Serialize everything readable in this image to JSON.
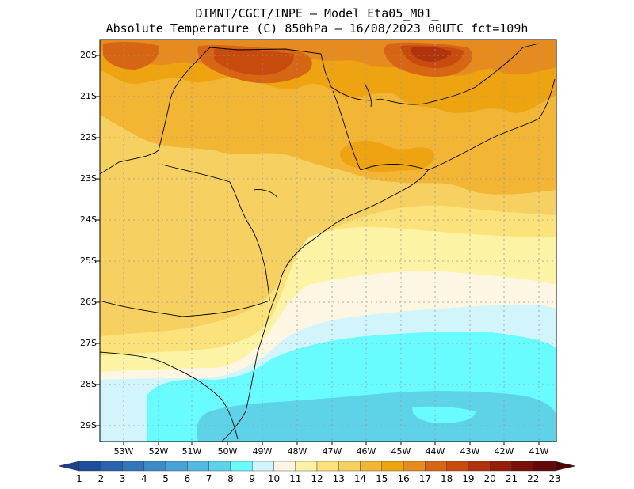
{
  "title": {
    "line1": "DIMNT/CGCT/INPE –  Model Eta05_M01_",
    "line2": "Absolute Temperature (C) 850hPa –  16/08/2023 00UTC fct=109h"
  },
  "map": {
    "lat_labels": [
      "20S",
      "21S",
      "22S",
      "23S",
      "24S",
      "25S",
      "26S",
      "27S",
      "28S",
      "29S"
    ],
    "lon_labels": [
      "53W",
      "52W",
      "51W",
      "50W",
      "49W",
      "48W",
      "47W",
      "46W",
      "45W",
      "44W",
      "43W",
      "42W",
      "41W"
    ],
    "colors": {
      "t8": "#5ed3e8",
      "t9": "#68fbff",
      "t10": "#d2f5fb",
      "t11": "#fdf6e2",
      "t12": "#fcf3a4",
      "t13": "#fbe27a",
      "t14": "#f6d060",
      "t15": "#f2b534",
      "t16": "#eda410",
      "t17": "#e68c1e",
      "t18": "#d76614",
      "t19": "#c84b0e",
      "t20": "#b0330c"
    }
  },
  "colorbar": {
    "labels": [
      "1",
      "2",
      "3",
      "4",
      "5",
      "6",
      "7",
      "8",
      "9",
      "10",
      "11",
      "12",
      "13",
      "14",
      "15",
      "16",
      "17",
      "18",
      "19",
      "20",
      "21",
      "22",
      "23"
    ],
    "colors": [
      "#1f4f9a",
      "#2a62ab",
      "#3276ba",
      "#3c8ac8",
      "#49a2d6",
      "#53b9e2",
      "#5ed3e8",
      "#68fbff",
      "#d2f5fb",
      "#fdf6e2",
      "#fcf3a4",
      "#fbe27a",
      "#f6d060",
      "#f2b534",
      "#eda410",
      "#e68c1e",
      "#d76614",
      "#c84b0e",
      "#b0330c",
      "#941e0a",
      "#7a1108",
      "#640808"
    ],
    "end_low": "#1f3f88",
    "end_high": "#500404"
  }
}
